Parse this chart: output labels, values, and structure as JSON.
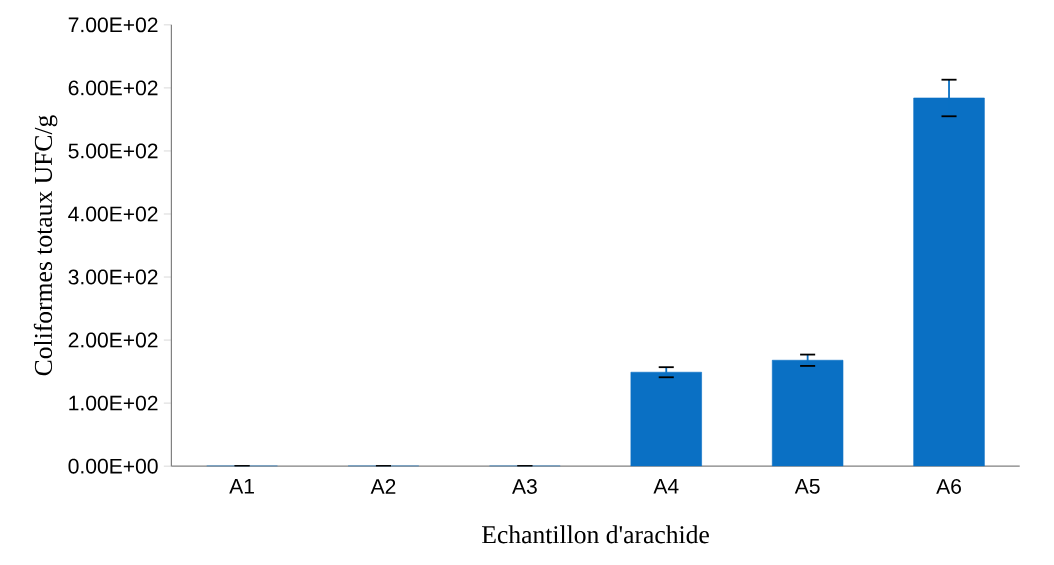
{
  "chart_data": {
    "type": "bar",
    "xlabel": "Echantillon d'arachide",
    "ylabel": "Coliformes totaux UFC/g",
    "categories": [
      "A1",
      "A2",
      "A3",
      "A4",
      "A5",
      "A6"
    ],
    "values": [
      0,
      0,
      0,
      149,
      168,
      584
    ],
    "errors": [
      0,
      0,
      0,
      8,
      9,
      29
    ],
    "color": "#0a70c4",
    "ylim": [
      0,
      700
    ],
    "yticks": [
      {
        "value": 0,
        "label": "0.00E+00"
      },
      {
        "value": 100,
        "label": "1.00E+02"
      },
      {
        "value": 200,
        "label": "2.00E+02"
      },
      {
        "value": 300,
        "label": "3.00E+02"
      },
      {
        "value": 400,
        "label": "4.00E+02"
      },
      {
        "value": 500,
        "label": "5.00E+02"
      },
      {
        "value": 600,
        "label": "6.00E+02"
      },
      {
        "value": 700,
        "label": "7.00E+02"
      }
    ]
  }
}
